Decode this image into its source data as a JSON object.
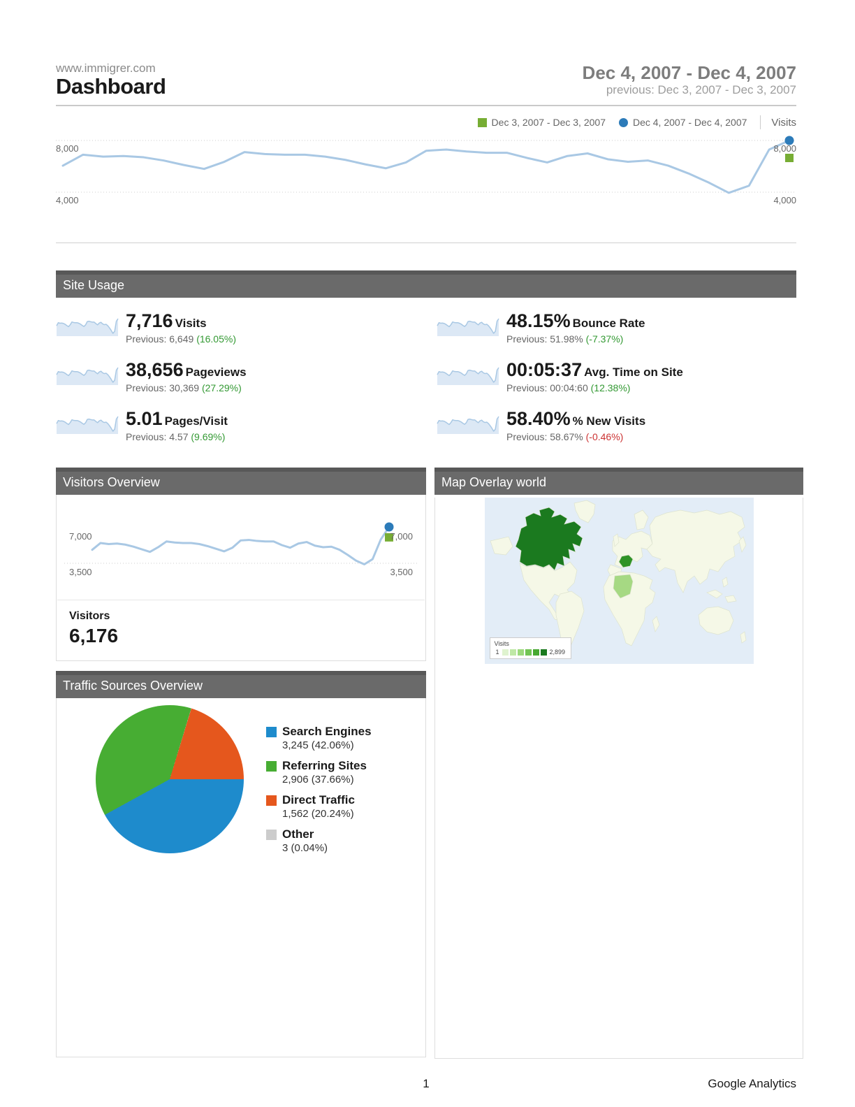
{
  "header": {
    "site": "www.immigrer.com",
    "title": "Dashboard",
    "date_range": "Dec 4, 2007 - Dec 4, 2007",
    "previous_range": "previous: Dec 3, 2007 - Dec 3, 2007"
  },
  "legend": {
    "previous_label": "Dec 3, 2007 - Dec 3, 2007",
    "current_label": "Dec 4, 2007 - Dec 4, 2007",
    "metric_label": "Visits"
  },
  "colors": {
    "current_blue": "#2c7bb9",
    "previous_green": "#77ad34",
    "trend_line": "#a9c8e4",
    "delta_up_green": "#339933",
    "delta_down_red": "#cc3333",
    "section_header_gray": "#6a6a6a"
  },
  "chart_data": [
    {
      "id": "visits_trend",
      "type": "line",
      "title": "Visits",
      "ylim": [
        4000,
        8000
      ],
      "axis_labels": {
        "top": "8,000",
        "bottom": "4,000"
      },
      "grid_values": [
        8000,
        4000
      ],
      "legend_position": "top-right",
      "previous_marker_value": 6649,
      "series": [
        {
          "name": "Dec 4, 2007 - Dec 4, 2007",
          "values": [
            6050,
            6900,
            6750,
            6800,
            6700,
            6450,
            6100,
            5800,
            6350,
            7100,
            6950,
            6900,
            6900,
            6750,
            6500,
            6150,
            5850,
            6300,
            7200,
            7300,
            7150,
            7050,
            7050,
            6650,
            6300,
            6800,
            7000,
            6550,
            6350,
            6450,
            6050,
            5450,
            4750,
            3950,
            4500,
            7300,
            8000
          ]
        }
      ]
    },
    {
      "id": "visitors_trend",
      "type": "line",
      "title": "Visitors",
      "ylim": [
        3500,
        7000
      ],
      "axis_labels": {
        "top": "7,000",
        "bottom": "3,500"
      },
      "grid_values": [
        3500
      ],
      "previous_marker_value": 6000,
      "series": [
        {
          "name": "Visitors",
          "values": [
            4800,
            5450,
            5350,
            5400,
            5300,
            5100,
            4850,
            4600,
            5050,
            5600,
            5500,
            5450,
            5450,
            5350,
            5150,
            4900,
            4650,
            5000,
            5700,
            5750,
            5650,
            5600,
            5600,
            5250,
            5000,
            5400,
            5550,
            5200,
            5050,
            5100,
            4800,
            4300,
            3750,
            3400,
            3900,
            5800,
            7000
          ]
        }
      ]
    },
    {
      "id": "traffic_sources",
      "type": "pie",
      "title": "Traffic Sources Overview",
      "rotation_deg": 17,
      "draw_order": [
        2,
        0,
        1,
        3
      ],
      "slices": [
        {
          "label": "Search Engines",
          "value": 3245,
          "value_pct": 42.06,
          "display": "3,245 (42.06%)",
          "color": "#1e8bcc"
        },
        {
          "label": "Referring Sites",
          "value": 2906,
          "value_pct": 37.66,
          "display": "2,906 (37.66%)",
          "color": "#47ad33"
        },
        {
          "label": "Direct Traffic",
          "value": 1562,
          "value_pct": 20.24,
          "display": "1,562 (20.24%)",
          "color": "#e5571d"
        },
        {
          "label": "Other",
          "value": 3,
          "value_pct": 0.04,
          "display": "3 (0.04%)",
          "color": "#cccccc"
        }
      ]
    }
  ],
  "site_usage": {
    "title": "Site Usage",
    "metrics": [
      {
        "value": "7,716",
        "label": "Visits",
        "previous": "Previous: 6,649",
        "delta": "(16.05%)",
        "delta_color": "#339933"
      },
      {
        "value": "48.15%",
        "label": "Bounce Rate",
        "previous": "Previous: 51.98%",
        "delta": "(-7.37%)",
        "delta_color": "#339933"
      },
      {
        "value": "38,656",
        "label": "Pageviews",
        "previous": "Previous: 30,369",
        "delta": "(27.29%)",
        "delta_color": "#339933"
      },
      {
        "value": "00:05:37",
        "label": "Avg. Time on Site",
        "previous": "Previous: 00:04:60",
        "delta": "(12.38%)",
        "delta_color": "#339933"
      },
      {
        "value": "5.01",
        "label": "Pages/Visit",
        "previous": "Previous: 4.57",
        "delta": "(9.69%)",
        "delta_color": "#339933"
      },
      {
        "value": "58.40%",
        "label": "% New Visits",
        "previous": "Previous: 58.67%",
        "delta": "(-0.46%)",
        "delta_color": "#cc3333"
      }
    ]
  },
  "visitors_overview": {
    "title": "Visitors Overview",
    "metric_label": "Visitors",
    "metric_value": "6,176"
  },
  "map_overlay": {
    "title": "Map Overlay world",
    "legend_title": "Visits",
    "legend_min": "1",
    "legend_max": "2,899",
    "scale_colors": [
      "#dff3cf",
      "#bfe8a6",
      "#9cd97c",
      "#72c453",
      "#47a830",
      "#1b7a1f"
    ],
    "highlights": [
      {
        "country": "canada",
        "color": "#1b7a1f"
      },
      {
        "country": "france",
        "color": "#2f9327"
      },
      {
        "country": "algeria",
        "color": "#a6d983"
      }
    ]
  },
  "traffic_sources_panel": {
    "title": "Traffic Sources Overview"
  },
  "footer": {
    "page_number": "1",
    "brand": "Google Analytics"
  }
}
